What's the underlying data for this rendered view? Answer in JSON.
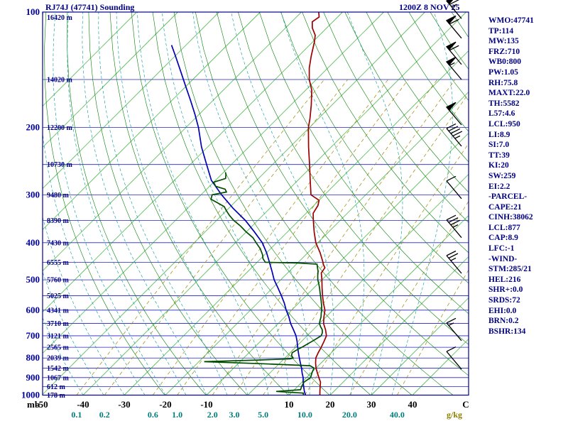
{
  "title": "RJ74J (47741) Sounding",
  "datetime": "1200Z  8 NOV 25",
  "units": {
    "pressure": "mb",
    "mixing_ratio": "g/kg",
    "temperature": "C"
  },
  "panel": {
    "lines": [
      "WMO:47741",
      "TP:114",
      "MW:135",
      "FRZ:710",
      "WB0:800",
      "PW:1.05",
      "RH:75.8",
      "MAXT:22.0",
      "TH:5582",
      "L57:4.6",
      "LCL:950",
      "LI:8.9",
      "SI:7.0",
      "TT:39",
      "KI:20",
      "SW:259",
      "EI:2.2",
      "-PARCEL-",
      "CAPE:21",
      "CINH:38062",
      "LCL:877",
      "CAP:8.9",
      "LFC:-1",
      "-WIND-",
      "STM:285/21",
      "HEL:216",
      "SHR+:0.0",
      "SRDS:72",
      "EHI:0.0",
      "BRN:0.2",
      "BSHR:134"
    ]
  },
  "chart_data": {
    "type": "skewt_log_p_sounding",
    "title": "RJ74J (47741) Sounding",
    "valid": "1200Z 8 NOV 25",
    "pressure_axis": {
      "ticks_mb": [
        100,
        200,
        300,
        400,
        500,
        600,
        700,
        800,
        900,
        1000
      ],
      "minor_step_mb": 50,
      "range": [
        100,
        1000
      ],
      "label": "mb"
    },
    "temperature_axis": {
      "ticks_c": [
        -50,
        -40,
        -30,
        -20,
        -10,
        10,
        20,
        30,
        40
      ],
      "label": "C"
    },
    "height_labels": [
      {
        "p": 100,
        "label": "16420 m"
      },
      {
        "p": 150,
        "label": "14020 m"
      },
      {
        "p": 200,
        "label": "12200 m"
      },
      {
        "p": 250,
        "label": "10730 m"
      },
      {
        "p": 300,
        "label": "9480 m"
      },
      {
        "p": 350,
        "label": "8390 m"
      },
      {
        "p": 400,
        "label": "7430 m"
      },
      {
        "p": 450,
        "label": "6555 m"
      },
      {
        "p": 500,
        "label": "5760 m"
      },
      {
        "p": 550,
        "label": "5025 m"
      },
      {
        "p": 600,
        "label": "4341 m"
      },
      {
        "p": 650,
        "label": "3710 m"
      },
      {
        "p": 700,
        "label": "3121 m"
      },
      {
        "p": 750,
        "label": "2565 m"
      },
      {
        "p": 800,
        "label": "2039 m"
      },
      {
        "p": 850,
        "label": "1542 m"
      },
      {
        "p": 900,
        "label": "1067 m"
      },
      {
        "p": 950,
        "label": "612 m"
      },
      {
        "p": 1000,
        "label": "178 m"
      }
    ],
    "mixing_ratio_lines": {
      "values": [
        0.1,
        0.2,
        0.6,
        1.0,
        2.0,
        3.0,
        5.0,
        10.0,
        20.0,
        40.0
      ],
      "labels": [
        "0.1",
        "0.2",
        "0.6",
        "1.0",
        "2.0",
        "3.0",
        "5.0",
        "10.0",
        "20.0",
        "40.0"
      ],
      "unit": "g/kg"
    },
    "isotherms_c": {
      "min": -120,
      "max": 40,
      "step": 10
    },
    "dry_adiabats_k": {
      "min": 253,
      "max": 443,
      "step": 10
    },
    "moist_adiabats_start_c": {
      "min": -40,
      "max": 35,
      "step": 5
    },
    "series": {
      "temperature_c": [
        [
          1000,
          17.5
        ],
        [
          975,
          16.5
        ],
        [
          950,
          15.5
        ],
        [
          925,
          14.5
        ],
        [
          900,
          13
        ],
        [
          875,
          11.5
        ],
        [
          850,
          10
        ],
        [
          825,
          8.7
        ],
        [
          800,
          7.5
        ],
        [
          775,
          6.8
        ],
        [
          750,
          6.2
        ],
        [
          725,
          5.5
        ],
        [
          700,
          4.7
        ],
        [
          675,
          3
        ],
        [
          650,
          1
        ],
        [
          625,
          -0.5
        ],
        [
          600,
          -1.9
        ],
        [
          575,
          -4
        ],
        [
          550,
          -6
        ],
        [
          525,
          -8
        ],
        [
          500,
          -10
        ],
        [
          480,
          -11.8
        ],
        [
          465,
          -12.2
        ],
        [
          455,
          -13.5
        ],
        [
          450,
          -14
        ],
        [
          425,
          -17
        ],
        [
          400,
          -20.5
        ],
        [
          375,
          -23.5
        ],
        [
          350,
          -26.5
        ],
        [
          335,
          -28.3
        ],
        [
          320,
          -29
        ],
        [
          310,
          -30
        ],
        [
          300,
          -33.3
        ],
        [
          275,
          -37
        ],
        [
          250,
          -41
        ],
        [
          225,
          -45.5
        ],
        [
          200,
          -50.3
        ],
        [
          190,
          -52
        ],
        [
          175,
          -55
        ],
        [
          160,
          -58.5
        ],
        [
          150,
          -61.7
        ],
        [
          140,
          -64.5
        ],
        [
          130,
          -67
        ],
        [
          120,
          -69.5
        ],
        [
          115,
          -71
        ],
        [
          110,
          -73.5
        ],
        [
          106,
          -75
        ],
        [
          103,
          -74.5
        ],
        [
          100,
          -75.8
        ]
      ],
      "dewpoint_c": [
        [
          1000,
          13.5
        ],
        [
          988,
          13
        ],
        [
          978,
          6
        ],
        [
          968,
          11.5
        ],
        [
          950,
          11
        ],
        [
          925,
          10.5
        ],
        [
          900,
          11
        ],
        [
          875,
          10.2
        ],
        [
          850,
          9.5
        ],
        [
          838,
          8
        ],
        [
          828,
          -4
        ],
        [
          818,
          -18.7
        ],
        [
          810,
          -6
        ],
        [
          804,
          1.5
        ],
        [
          800,
          2
        ],
        [
          788,
          1
        ],
        [
          775,
          0.5
        ],
        [
          760,
          1
        ],
        [
          750,
          1.5
        ],
        [
          738,
          2
        ],
        [
          725,
          2.5
        ],
        [
          712,
          3
        ],
        [
          700,
          3.4
        ],
        [
          688,
          3
        ],
        [
          675,
          2.2
        ],
        [
          662,
          1
        ],
        [
          650,
          0
        ],
        [
          638,
          -0.6
        ],
        [
          625,
          -1.2
        ],
        [
          612,
          -2
        ],
        [
          600,
          -2.7
        ],
        [
          588,
          -3.5
        ],
        [
          575,
          -4.5
        ],
        [
          562,
          -5.5
        ],
        [
          550,
          -6.5
        ],
        [
          538,
          -7.5
        ],
        [
          525,
          -8.6
        ],
        [
          512,
          -9.8
        ],
        [
          500,
          -11
        ],
        [
          488,
          -12
        ],
        [
          475,
          -13
        ],
        [
          465,
          -14
        ],
        [
          455,
          -15
        ],
        [
          452,
          -20
        ],
        [
          450,
          -28
        ],
        [
          440,
          -29.5
        ],
        [
          430,
          -30.5
        ],
        [
          415,
          -32.5
        ],
        [
          400,
          -35
        ],
        [
          388,
          -37
        ],
        [
          375,
          -40
        ],
        [
          362,
          -42.8
        ],
        [
          350,
          -45.8
        ],
        [
          340,
          -48
        ],
        [
          330,
          -50
        ],
        [
          322,
          -51.5
        ],
        [
          315,
          -54
        ],
        [
          308,
          -56.5
        ],
        [
          300,
          -57.3
        ],
        [
          295,
          -54.5
        ],
        [
          290,
          -55.5
        ],
        [
          285,
          -58.5
        ],
        [
          278,
          -60
        ],
        [
          272,
          -58
        ],
        [
          266,
          -58.8
        ],
        [
          262,
          -59.5
        ]
      ],
      "parcel_c": [
        [
          1000,
          14
        ],
        [
          975,
          12.7
        ],
        [
          950,
          11.5
        ],
        [
          925,
          10.3
        ],
        [
          900,
          9.2
        ],
        [
          875,
          7.8
        ],
        [
          850,
          6.5
        ],
        [
          825,
          5
        ],
        [
          800,
          3.5
        ],
        [
          775,
          2
        ],
        [
          750,
          0.5
        ],
        [
          725,
          -1
        ],
        [
          700,
          -2.7
        ],
        [
          675,
          -4.8
        ],
        [
          650,
          -7
        ],
        [
          625,
          -9
        ],
        [
          600,
          -11.3
        ],
        [
          575,
          -13.5
        ],
        [
          550,
          -16
        ],
        [
          525,
          -18.7
        ],
        [
          500,
          -21.6
        ],
        [
          475,
          -24.2
        ],
        [
          450,
          -27
        ],
        [
          425,
          -30
        ],
        [
          400,
          -33.5
        ],
        [
          375,
          -38
        ],
        [
          350,
          -43
        ],
        [
          325,
          -49
        ],
        [
          300,
          -55
        ],
        [
          275,
          -61
        ],
        [
          250,
          -66
        ],
        [
          225,
          -71.5
        ],
        [
          200,
          -77
        ],
        [
          185,
          -81
        ],
        [
          170,
          -85.5
        ],
        [
          155,
          -90.5
        ],
        [
          140,
          -96
        ],
        [
          130,
          -100
        ],
        [
          122,
          -103.5
        ]
      ]
    },
    "winds": [
      {
        "p": 104,
        "kt": 65
      },
      {
        "p": 117,
        "kt": 60
      },
      {
        "p": 137,
        "kt": 60
      },
      {
        "p": 150,
        "kt": 55
      },
      {
        "p": 197,
        "kt": 50
      },
      {
        "p": 224,
        "kt": 45
      },
      {
        "p": 307,
        "kt": 10
      },
      {
        "p": 388,
        "kt": 35
      },
      {
        "p": 481,
        "kt": 25
      },
      {
        "p": 721,
        "kt": 15
      },
      {
        "p": 856,
        "kt": 10
      }
    ],
    "wind_dir_deg": 285,
    "colors": {
      "grid_blue": "#2323c8",
      "border_blue": "#00008b",
      "isotherm_green": "#00a000",
      "dry_adiabat_green": "#008000",
      "moist_adiabat_teal": "#009999",
      "mixing_olive": "#9a8a00",
      "temperature_red": "#9b0000",
      "dewpoint_green": "#004d00",
      "parcel_blue": "#0000b4",
      "label_navy": "#000080",
      "pressure_label_blue": "#0000a0",
      "mixing_label_teal": "#007b7b",
      "temp_label_black": "#000000",
      "barb_black": "#000000"
    }
  }
}
